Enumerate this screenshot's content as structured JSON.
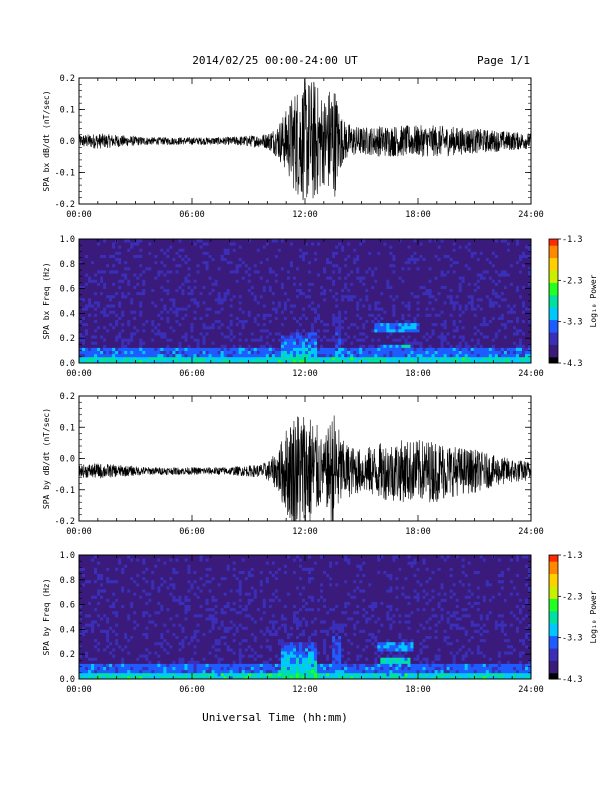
{
  "header": {
    "title": "2014/02/25  00:00-24:00 UT",
    "page": "Page 1/1"
  },
  "xlabel": "Universal Time (hh:mm)",
  "x_tick_labels": [
    "00:00",
    "06:00",
    "12:00",
    "18:00",
    "24:00"
  ],
  "colorbar": {
    "label": "Log₁₀ Power",
    "tick_labels": [
      "-1.3",
      "-2.3",
      "-3.3",
      "-4.3"
    ],
    "colors": [
      "#000000",
      "#3a1a7a",
      "#3a2fb8",
      "#1f5cff",
      "#00c8ff",
      "#00e0a0",
      "#22ff22",
      "#c8f000",
      "#ffd000",
      "#ff8800",
      "#ff2a00"
    ]
  },
  "colors": {
    "trace": "#000000",
    "axis": "#000000",
    "background": "#ffffff"
  },
  "chart_data": [
    {
      "type": "line",
      "ylabel": "SPA bx dB/dt (nT/sec)",
      "xlim": [
        0,
        24
      ],
      "ylim": [
        -0.2,
        0.2
      ],
      "y_tick_labels": [
        "0.2",
        "0.1",
        "0.0",
        "-0.1",
        "-0.2"
      ],
      "y_ticks": [
        0.2,
        0.1,
        0.0,
        -0.1,
        -0.2
      ],
      "envelope": {
        "hours": [
          0,
          1,
          2,
          3,
          4,
          5,
          6,
          7,
          8,
          9,
          9.5,
          10,
          10.5,
          11,
          11.5,
          12,
          12.5,
          13,
          13.5,
          14,
          14.5,
          15,
          15.5,
          16,
          17,
          18,
          19,
          20,
          21,
          22,
          23,
          24
        ],
        "amplitude": [
          0.02,
          0.025,
          0.02,
          0.015,
          0.012,
          0.012,
          0.012,
          0.012,
          0.013,
          0.018,
          0.02,
          0.025,
          0.05,
          0.1,
          0.17,
          0.2,
          0.2,
          0.14,
          0.2,
          0.07,
          0.05,
          0.045,
          0.045,
          0.05,
          0.05,
          0.05,
          0.05,
          0.045,
          0.04,
          0.035,
          0.03,
          0.025
        ]
      },
      "grid": false
    },
    {
      "type": "heatmap",
      "ylabel": "SPA bx Freq (Hz)",
      "xlim": [
        0,
        24
      ],
      "ylim": [
        0.0,
        1.0
      ],
      "y_tick_labels": [
        "1.0",
        "0.8",
        "0.6",
        "0.4",
        "0.2",
        "0.0"
      ],
      "y_ticks": [
        1.0,
        0.8,
        0.6,
        0.4,
        0.2,
        0.0
      ],
      "colorbar_range": [
        -4.3,
        -1.3
      ],
      "features": [
        {
          "hour_start": 10.8,
          "hour_end": 12.6,
          "freq_max": 0.25,
          "log_power": -2.5
        },
        {
          "hour_start": 13.6,
          "hour_end": 13.9,
          "freq_max": 0.6,
          "log_power": -3.0
        },
        {
          "hour_start": 15.7,
          "hour_end": 18.0,
          "freq_min": 0.24,
          "freq_max": 0.32,
          "log_power": -3.0
        },
        {
          "hour_start": 16.0,
          "hour_end": 17.6,
          "freq_min": 0.12,
          "freq_max": 0.16,
          "log_power": -2.7
        }
      ]
    },
    {
      "type": "line",
      "ylabel": "SPA by dB/dt (nT/sec)",
      "xlim": [
        0,
        24
      ],
      "ylim": [
        -0.2,
        0.2
      ],
      "y_tick_labels": [
        "0.2",
        "0.1",
        "0.0",
        "-0.1",
        "-0.2"
      ],
      "y_ticks": [
        0.2,
        0.1,
        0.0,
        -0.1,
        -0.2
      ],
      "baseline": -0.04,
      "envelope": {
        "hours": [
          0,
          1,
          2,
          3,
          4,
          5,
          6,
          7,
          8,
          9,
          9.5,
          10,
          10.5,
          11,
          11.5,
          12,
          12.5,
          13,
          13.5,
          14,
          14.5,
          15,
          15.5,
          16,
          17,
          18,
          19,
          20,
          21,
          22,
          23,
          24
        ],
        "amplitude": [
          0.02,
          0.025,
          0.02,
          0.015,
          0.012,
          0.012,
          0.012,
          0.012,
          0.013,
          0.018,
          0.02,
          0.03,
          0.06,
          0.14,
          0.2,
          0.2,
          0.17,
          0.09,
          0.2,
          0.1,
          0.08,
          0.07,
          0.08,
          0.09,
          0.1,
          0.1,
          0.1,
          0.08,
          0.07,
          0.05,
          0.04,
          0.03
        ]
      },
      "grid": false
    },
    {
      "type": "heatmap",
      "ylabel": "SPA by Freq (Hz)",
      "xlim": [
        0,
        24
      ],
      "ylim": [
        0.0,
        1.0
      ],
      "y_tick_labels": [
        "1.0",
        "0.8",
        "0.6",
        "0.4",
        "0.2",
        "0.0"
      ],
      "y_ticks": [
        1.0,
        0.8,
        0.6,
        0.4,
        0.2,
        0.0
      ],
      "colorbar_range": [
        -4.3,
        -1.3
      ],
      "features": [
        {
          "hour_start": 10.8,
          "hour_end": 12.7,
          "freq_max": 0.3,
          "log_power": -2.4
        },
        {
          "hour_start": 13.5,
          "hour_end": 13.9,
          "freq_max": 0.55,
          "log_power": -2.9
        },
        {
          "hour_start": 15.8,
          "hour_end": 17.8,
          "freq_min": 0.22,
          "freq_max": 0.3,
          "log_power": -3.0
        },
        {
          "hour_start": 16.0,
          "hour_end": 17.6,
          "freq_min": 0.12,
          "freq_max": 0.17,
          "log_power": -2.7
        }
      ]
    }
  ]
}
